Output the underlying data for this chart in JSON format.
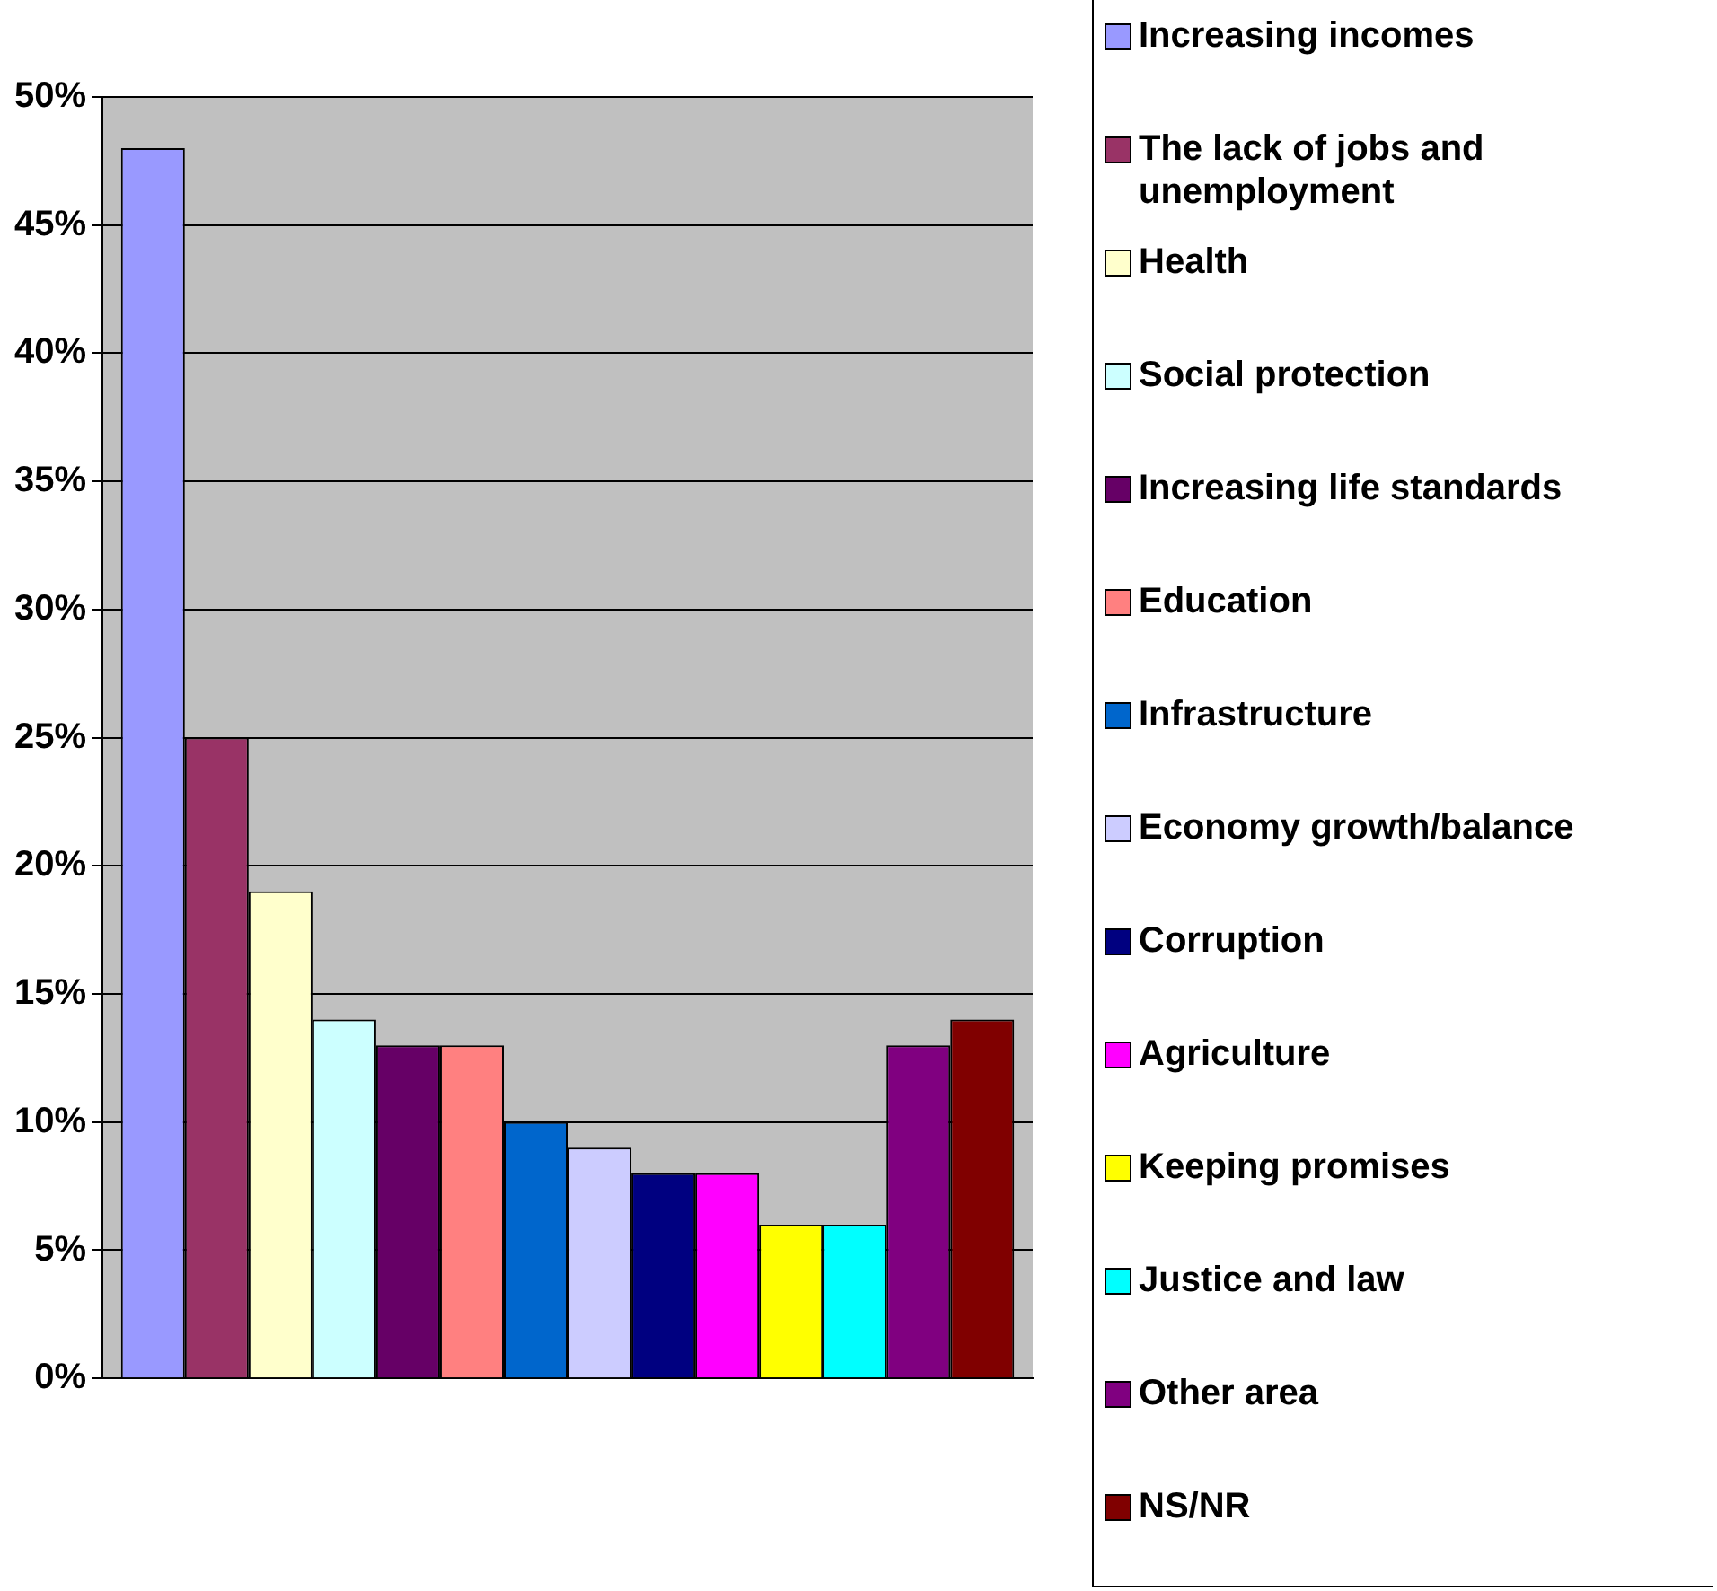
{
  "chart_data": {
    "type": "bar",
    "categories": [
      null
    ],
    "ylim": [
      0,
      50
    ],
    "yticks": [
      {
        "value": 0,
        "label": "0%"
      },
      {
        "value": 5,
        "label": "5%"
      },
      {
        "value": 10,
        "label": "10%"
      },
      {
        "value": 15,
        "label": "15%"
      },
      {
        "value": 20,
        "label": "20%"
      },
      {
        "value": 25,
        "label": "25%"
      },
      {
        "value": 30,
        "label": "30%"
      },
      {
        "value": 35,
        "label": "35%"
      },
      {
        "value": 40,
        "label": "40%"
      },
      {
        "value": 45,
        "label": "45%"
      },
      {
        "value": 50,
        "label": "50%"
      }
    ],
    "grid": "y",
    "legend": "right",
    "series": [
      {
        "name": "Increasing incomes",
        "color": "#9999ff",
        "values": [
          48
        ]
      },
      {
        "name": "The lack of jobs and unemployment",
        "color": "#993366",
        "values": [
          25
        ]
      },
      {
        "name": "Health",
        "color": "#ffffcc",
        "values": [
          19
        ]
      },
      {
        "name": "Social protection",
        "color": "#ccffff",
        "values": [
          14
        ]
      },
      {
        "name": "Increasing life standards",
        "color": "#660066",
        "values": [
          13
        ]
      },
      {
        "name": "Education",
        "color": "#ff8080",
        "values": [
          13
        ]
      },
      {
        "name": "Infrastructure",
        "color": "#0066cc",
        "values": [
          10
        ]
      },
      {
        "name": "Economy growth/balance",
        "color": "#ccccff",
        "values": [
          9
        ]
      },
      {
        "name": "Corruption",
        "color": "#000080",
        "values": [
          8
        ]
      },
      {
        "name": "Agriculture",
        "color": "#ff00ff",
        "values": [
          8
        ]
      },
      {
        "name": "Keeping promises",
        "color": "#ffff00",
        "values": [
          6
        ]
      },
      {
        "name": "Justice and law",
        "color": "#00ffff",
        "values": [
          6
        ]
      },
      {
        "name": "Other area",
        "color": "#800080",
        "values": [
          13
        ]
      },
      {
        "name": "NS/NR",
        "color": "#800000",
        "values": [
          14
        ]
      }
    ]
  }
}
